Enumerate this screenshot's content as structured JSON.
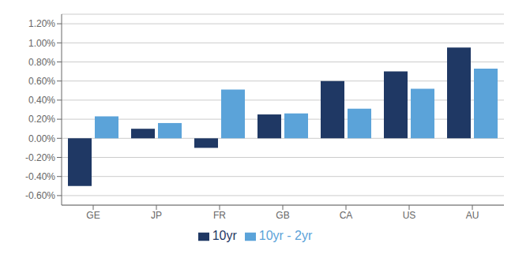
{
  "chart_data": {
    "type": "bar",
    "categories": [
      "GE",
      "JP",
      "FR",
      "GB",
      "CA",
      "US",
      "AU"
    ],
    "series": [
      {
        "name": "10yr",
        "color": "#1f3864",
        "values": [
          -0.005,
          0.001,
          -0.001,
          0.0025,
          0.006,
          0.007,
          0.0095
        ]
      },
      {
        "name": "10yr - 2yr",
        "color": "#5ba3d9",
        "values": [
          0.0023,
          0.0016,
          0.0051,
          0.0026,
          0.0031,
          0.0052,
          0.0073
        ]
      }
    ],
    "ylim": [
      -0.007,
      0.013
    ],
    "yticks": [
      {
        "value": -0.006,
        "label": "-0.60%"
      },
      {
        "value": -0.004,
        "label": "-0.40%"
      },
      {
        "value": -0.002,
        "label": "-0.20%"
      },
      {
        "value": 0.0,
        "label": "0.00%"
      },
      {
        "value": 0.002,
        "label": "0.20%"
      },
      {
        "value": 0.004,
        "label": "0.40%"
      },
      {
        "value": 0.006,
        "label": "0.60%"
      },
      {
        "value": 0.008,
        "label": "0.80%"
      },
      {
        "value": 0.01,
        "label": "1.00%"
      },
      {
        "value": 0.012,
        "label": "1.20%"
      }
    ],
    "grid": true,
    "legend": "bottom"
  }
}
